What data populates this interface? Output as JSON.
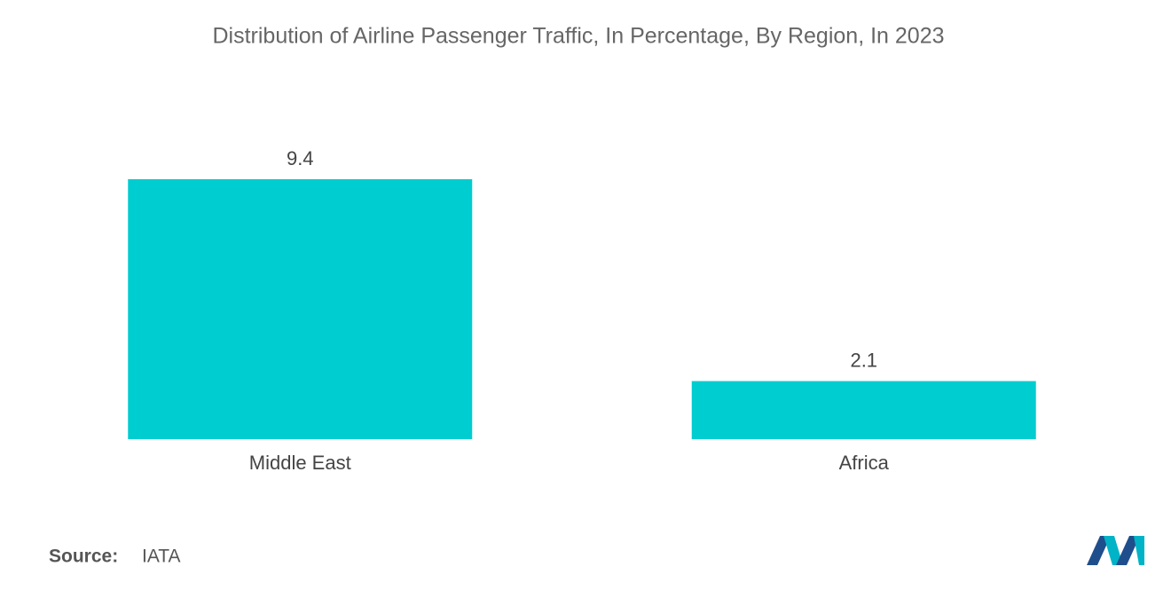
{
  "chart_data": {
    "type": "bar",
    "title": "Distribution of Airline Passenger Traffic, In Percentage, By Region, In 2023",
    "categories": [
      "Middle East",
      "Africa"
    ],
    "values": [
      9.4,
      2.1
    ],
    "color": "#00cdd0",
    "source_label": "Source:",
    "source": "IATA"
  }
}
